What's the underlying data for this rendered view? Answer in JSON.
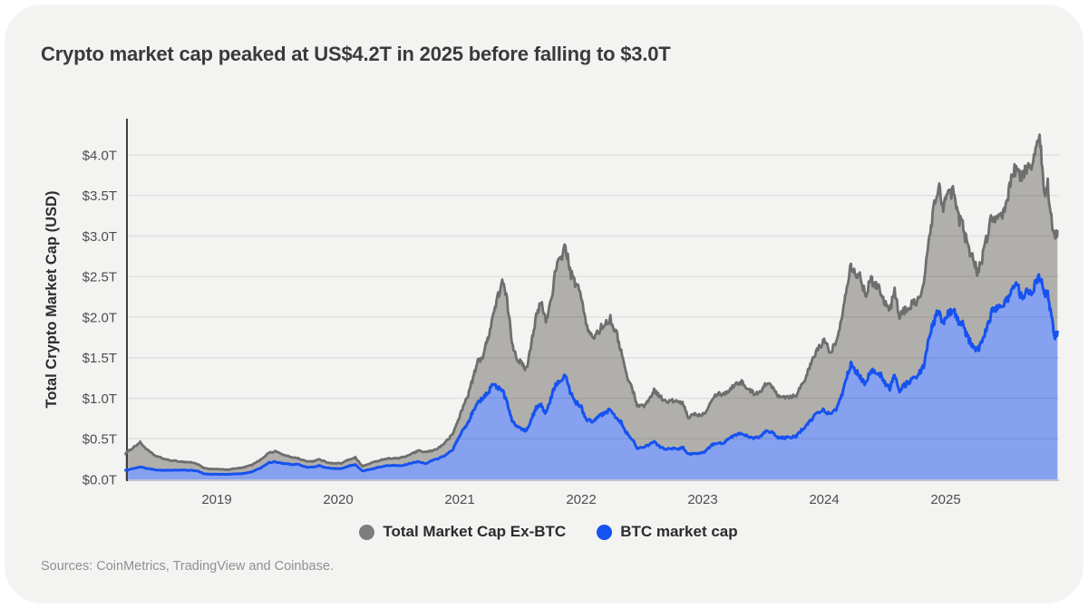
{
  "card": {
    "title": "Crypto market cap peaked at US$4.2T in 2025 before falling to $3.0T",
    "source_note": "Sources: CoinMetrics, TradingView and Coinbase."
  },
  "legend": [
    {
      "label": "Total Market Cap Ex-BTC",
      "color": "#7d7d7d"
    },
    {
      "label": "BTC market cap",
      "color": "#1652f0"
    }
  ],
  "chart_data": {
    "type": "area",
    "title": "Crypto market cap peaked at US$4.2T in 2025 before falling to $3.0T",
    "xlabel": "",
    "ylabel": "Total Crypto Market Cap (USD)",
    "unit": "trillion USD",
    "grid": "horizontal",
    "legend_position": "bottom-center",
    "xlim": [
      2018.25,
      2025.93
    ],
    "ylim": [
      0,
      4.43
    ],
    "x_ticks": [
      2019,
      2020,
      2021,
      2022,
      2023,
      2024,
      2025
    ],
    "y_ticks": [
      {
        "label": "$0.0T",
        "value": 0.0
      },
      {
        "label": "$0.5T",
        "value": 0.5
      },
      {
        "label": "$1.0T",
        "value": 1.0
      },
      {
        "label": "$1.5T",
        "value": 1.5
      },
      {
        "label": "$2.0T",
        "value": 2.0
      },
      {
        "label": "$2.5T",
        "value": 2.5
      },
      {
        "label": "$3.0T",
        "value": 3.0
      },
      {
        "label": "$3.5T",
        "value": 3.5
      },
      {
        "label": "$4.0T",
        "value": 4.0
      }
    ],
    "colors": {
      "total_fill": "#b1afac",
      "total_stroke": "#6e6e6e",
      "btc_fill": "#85a1f0",
      "btc_stroke": "#1652f0",
      "gridline_over": "rgba(0,0,0,0.075)",
      "axis_line": "#3e3e3e",
      "tick_text": "#4d4d4d"
    },
    "columns": [
      "year_decimal",
      "total_crypto_market_cap_T",
      "btc_market_cap_T"
    ],
    "points": [
      [
        2018.25,
        0.32,
        0.11
      ],
      [
        2018.31,
        0.39,
        0.132
      ],
      [
        2018.37,
        0.455,
        0.152
      ],
      [
        2018.43,
        0.36,
        0.132
      ],
      [
        2018.49,
        0.295,
        0.118
      ],
      [
        2018.55,
        0.26,
        0.112
      ],
      [
        2018.61,
        0.235,
        0.11
      ],
      [
        2018.67,
        0.225,
        0.114
      ],
      [
        2018.73,
        0.215,
        0.112
      ],
      [
        2018.79,
        0.21,
        0.111
      ],
      [
        2018.85,
        0.185,
        0.1
      ],
      [
        2018.89,
        0.14,
        0.072
      ],
      [
        2018.95,
        0.125,
        0.062
      ],
      [
        2019.01,
        0.128,
        0.064
      ],
      [
        2019.08,
        0.118,
        0.061
      ],
      [
        2019.15,
        0.132,
        0.066
      ],
      [
        2019.22,
        0.145,
        0.072
      ],
      [
        2019.29,
        0.178,
        0.092
      ],
      [
        2019.36,
        0.24,
        0.138
      ],
      [
        2019.43,
        0.33,
        0.205
      ],
      [
        2019.49,
        0.345,
        0.215
      ],
      [
        2019.55,
        0.3,
        0.195
      ],
      [
        2019.61,
        0.275,
        0.185
      ],
      [
        2019.67,
        0.26,
        0.183
      ],
      [
        2019.73,
        0.225,
        0.152
      ],
      [
        2019.79,
        0.222,
        0.15
      ],
      [
        2019.84,
        0.247,
        0.169
      ],
      [
        2019.9,
        0.215,
        0.145
      ],
      [
        2019.96,
        0.195,
        0.131
      ],
      [
        2020.03,
        0.2,
        0.134
      ],
      [
        2020.09,
        0.245,
        0.168
      ],
      [
        2020.14,
        0.27,
        0.182
      ],
      [
        2020.2,
        0.16,
        0.104
      ],
      [
        2020.26,
        0.195,
        0.122
      ],
      [
        2020.32,
        0.225,
        0.145
      ],
      [
        2020.38,
        0.25,
        0.165
      ],
      [
        2020.44,
        0.26,
        0.172
      ],
      [
        2020.5,
        0.26,
        0.169
      ],
      [
        2020.56,
        0.285,
        0.182
      ],
      [
        2020.62,
        0.325,
        0.208
      ],
      [
        2020.66,
        0.35,
        0.218
      ],
      [
        2020.72,
        0.335,
        0.196
      ],
      [
        2020.78,
        0.355,
        0.238
      ],
      [
        2020.84,
        0.4,
        0.265
      ],
      [
        2020.89,
        0.47,
        0.305
      ],
      [
        2020.94,
        0.55,
        0.355
      ],
      [
        2020.98,
        0.7,
        0.48
      ],
      [
        2021.03,
        0.9,
        0.62
      ],
      [
        2021.07,
        1.05,
        0.7
      ],
      [
        2021.11,
        1.25,
        0.85
      ],
      [
        2021.15,
        1.45,
        0.94
      ],
      [
        2021.19,
        1.52,
        1.0
      ],
      [
        2021.23,
        1.72,
        1.07
      ],
      [
        2021.27,
        2.0,
        1.16
      ],
      [
        2021.31,
        2.22,
        1.13
      ],
      [
        2021.35,
        2.45,
        1.1
      ],
      [
        2021.39,
        2.2,
        0.95
      ],
      [
        2021.43,
        1.7,
        0.73
      ],
      [
        2021.47,
        1.5,
        0.65
      ],
      [
        2021.51,
        1.42,
        0.62
      ],
      [
        2021.55,
        1.36,
        0.6
      ],
      [
        2021.59,
        1.7,
        0.74
      ],
      [
        2021.63,
        2.0,
        0.88
      ],
      [
        2021.67,
        2.18,
        0.92
      ],
      [
        2021.71,
        1.95,
        0.81
      ],
      [
        2021.75,
        2.2,
        1.0
      ],
      [
        2021.79,
        2.58,
        1.18
      ],
      [
        2021.83,
        2.72,
        1.21
      ],
      [
        2021.87,
        2.88,
        1.27
      ],
      [
        2021.91,
        2.55,
        1.08
      ],
      [
        2021.95,
        2.42,
        0.96
      ],
      [
        2022.0,
        2.28,
        0.89
      ],
      [
        2022.04,
        1.9,
        0.74
      ],
      [
        2022.09,
        1.74,
        0.72
      ],
      [
        2022.14,
        1.82,
        0.77
      ],
      [
        2022.19,
        1.92,
        0.82
      ],
      [
        2022.24,
        1.98,
        0.86
      ],
      [
        2022.29,
        1.8,
        0.76
      ],
      [
        2022.33,
        1.58,
        0.7
      ],
      [
        2022.37,
        1.3,
        0.58
      ],
      [
        2022.42,
        1.12,
        0.5
      ],
      [
        2022.46,
        0.92,
        0.39
      ],
      [
        2022.51,
        0.9,
        0.39
      ],
      [
        2022.56,
        0.98,
        0.43
      ],
      [
        2022.6,
        1.1,
        0.46
      ],
      [
        2022.65,
        1.02,
        0.4
      ],
      [
        2022.7,
        0.95,
        0.37
      ],
      [
        2022.75,
        0.97,
        0.38
      ],
      [
        2022.8,
        0.95,
        0.38
      ],
      [
        2022.84,
        0.93,
        0.39
      ],
      [
        2022.88,
        0.76,
        0.31
      ],
      [
        2022.93,
        0.81,
        0.32
      ],
      [
        2022.97,
        0.79,
        0.32
      ],
      [
        2023.02,
        0.82,
        0.34
      ],
      [
        2023.07,
        0.98,
        0.42
      ],
      [
        2023.12,
        1.06,
        0.45
      ],
      [
        2023.17,
        1.05,
        0.44
      ],
      [
        2023.22,
        1.1,
        0.51
      ],
      [
        2023.27,
        1.18,
        0.55
      ],
      [
        2023.32,
        1.2,
        0.56
      ],
      [
        2023.37,
        1.12,
        0.53
      ],
      [
        2023.42,
        1.06,
        0.51
      ],
      [
        2023.47,
        1.08,
        0.52
      ],
      [
        2023.52,
        1.18,
        0.59
      ],
      [
        2023.57,
        1.15,
        0.58
      ],
      [
        2023.62,
        1.04,
        0.52
      ],
      [
        2023.67,
        1.02,
        0.51
      ],
      [
        2023.72,
        1.02,
        0.52
      ],
      [
        2023.77,
        1.04,
        0.53
      ],
      [
        2023.82,
        1.18,
        0.62
      ],
      [
        2023.86,
        1.3,
        0.68
      ],
      [
        2023.9,
        1.45,
        0.74
      ],
      [
        2023.95,
        1.62,
        0.83
      ],
      [
        2024.0,
        1.7,
        0.86
      ],
      [
        2024.05,
        1.58,
        0.79
      ],
      [
        2024.1,
        1.68,
        0.86
      ],
      [
        2024.14,
        1.95,
        1.02
      ],
      [
        2024.18,
        2.35,
        1.25
      ],
      [
        2024.22,
        2.65,
        1.41
      ],
      [
        2024.26,
        2.55,
        1.34
      ],
      [
        2024.3,
        2.48,
        1.26
      ],
      [
        2024.34,
        2.28,
        1.17
      ],
      [
        2024.38,
        2.45,
        1.32
      ],
      [
        2024.42,
        2.42,
        1.33
      ],
      [
        2024.46,
        2.35,
        1.3
      ],
      [
        2024.5,
        2.18,
        1.18
      ],
      [
        2024.54,
        2.08,
        1.12
      ],
      [
        2024.58,
        2.32,
        1.3
      ],
      [
        2024.62,
        2.02,
        1.1
      ],
      [
        2024.66,
        2.08,
        1.16
      ],
      [
        2024.7,
        2.12,
        1.2
      ],
      [
        2024.74,
        2.18,
        1.26
      ],
      [
        2024.78,
        2.22,
        1.3
      ],
      [
        2024.82,
        2.38,
        1.4
      ],
      [
        2024.86,
        2.95,
        1.74
      ],
      [
        2024.9,
        3.32,
        1.93
      ],
      [
        2024.94,
        3.62,
        2.08
      ],
      [
        2024.98,
        3.38,
        1.93
      ],
      [
        2025.02,
        3.48,
        2.04
      ],
      [
        2025.06,
        3.58,
        2.11
      ],
      [
        2025.1,
        3.25,
        1.95
      ],
      [
        2025.14,
        3.12,
        1.91
      ],
      [
        2025.18,
        2.88,
        1.74
      ],
      [
        2025.22,
        2.76,
        1.67
      ],
      [
        2025.26,
        2.56,
        1.58
      ],
      [
        2025.3,
        2.72,
        1.7
      ],
      [
        2025.34,
        2.98,
        1.87
      ],
      [
        2025.38,
        3.26,
        2.06
      ],
      [
        2025.42,
        3.18,
        2.09
      ],
      [
        2025.46,
        3.22,
        2.11
      ],
      [
        2025.5,
        3.38,
        2.19
      ],
      [
        2025.54,
        3.72,
        2.36
      ],
      [
        2025.58,
        3.86,
        2.43
      ],
      [
        2025.62,
        3.7,
        2.26
      ],
      [
        2025.66,
        3.82,
        2.31
      ],
      [
        2025.7,
        3.88,
        2.29
      ],
      [
        2025.74,
        4.06,
        2.43
      ],
      [
        2025.78,
        4.18,
        2.5
      ],
      [
        2025.81,
        3.48,
        2.28
      ],
      [
        2025.84,
        3.64,
        2.31
      ],
      [
        2025.875,
        3.18,
        1.96
      ],
      [
        2025.9,
        2.94,
        1.74
      ],
      [
        2025.92,
        3.06,
        1.82
      ]
    ]
  }
}
